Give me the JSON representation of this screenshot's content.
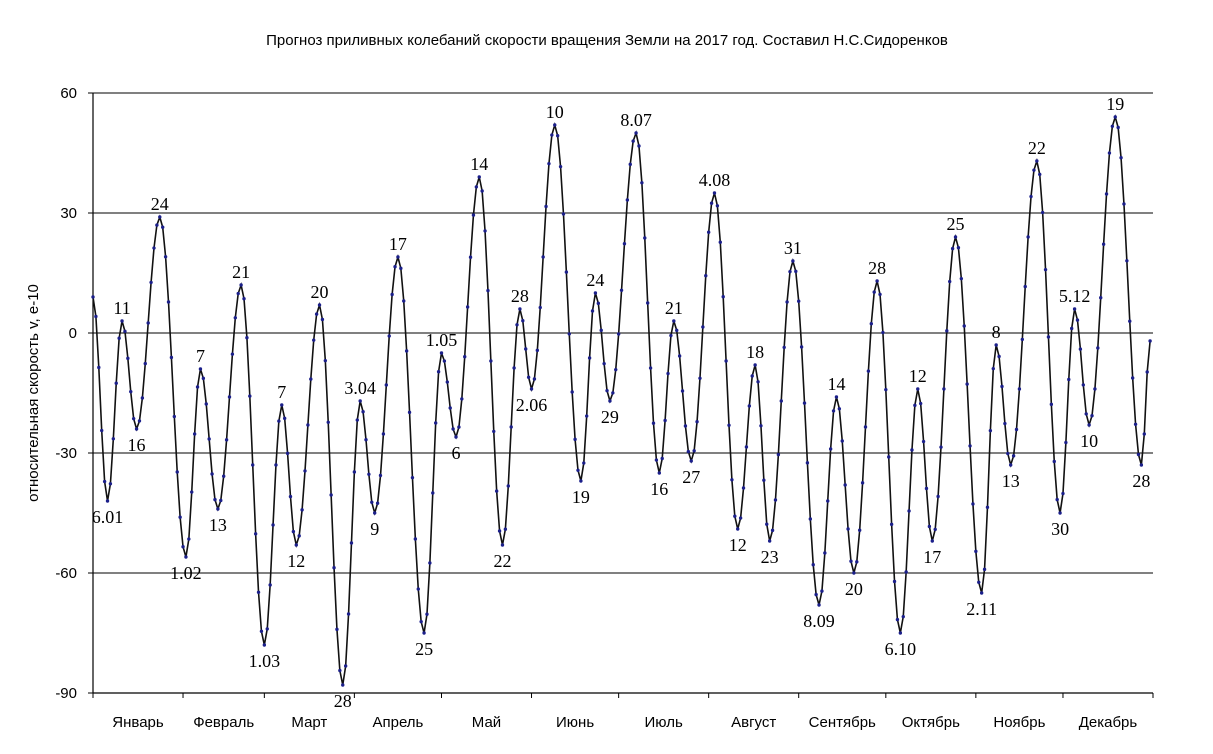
{
  "chart_data": {
    "type": "line",
    "title": "Прогноз приливных колебаний скорости вращения Земли на 2017 год. Составил Н.С.Сидоренков",
    "xlabel": "",
    "ylabel": "относительная скорость v, e-10",
    "ylim": [
      -90,
      60
    ],
    "yticks": [
      60,
      30,
      0,
      -30,
      -60,
      -90
    ],
    "ytick_labels": [
      "60",
      "30",
      "0",
      "-30",
      "-60",
      "-90"
    ],
    "xlim": [
      0,
      365
    ],
    "months": [
      {
        "label": "Январь",
        "start": 0
      },
      {
        "label": "Февраль",
        "start": 31
      },
      {
        "label": "Март",
        "start": 59
      },
      {
        "label": "Апрель",
        "start": 90
      },
      {
        "label": "Май",
        "start": 120
      },
      {
        "label": "Июнь",
        "start": 151
      },
      {
        "label": "Июль",
        "start": 181
      },
      {
        "label": "Август",
        "start": 212
      },
      {
        "label": "Сентябрь",
        "start": 243
      },
      {
        "label": "Октябрь",
        "start": 273
      },
      {
        "label": "Ноябрь",
        "start": 304
      },
      {
        "label": "Декабрь",
        "start": 334
      }
    ],
    "grid": true,
    "legend": "none",
    "series_color": "#111111",
    "marker_color": "#1b1f8a",
    "extrema": [
      {
        "day": 0,
        "value": 9,
        "label": ""
      },
      {
        "day": 5,
        "value": -42,
        "label": "6.01"
      },
      {
        "day": 10,
        "value": 3,
        "label": "11"
      },
      {
        "day": 15,
        "value": -24,
        "label": "16"
      },
      {
        "day": 23,
        "value": 29,
        "label": "24"
      },
      {
        "day": 32,
        "value": -56,
        "label": "1.02"
      },
      {
        "day": 37,
        "value": -9,
        "label": "7"
      },
      {
        "day": 43,
        "value": -44,
        "label": "13"
      },
      {
        "day": 51,
        "value": 12,
        "label": "21"
      },
      {
        "day": 59,
        "value": -78,
        "label": "1.03"
      },
      {
        "day": 65,
        "value": -18,
        "label": "7"
      },
      {
        "day": 70,
        "value": -53,
        "label": "12"
      },
      {
        "day": 78,
        "value": 7,
        "label": "20"
      },
      {
        "day": 86,
        "value": -88,
        "label": "28"
      },
      {
        "day": 92,
        "value": -17,
        "label": "3.04"
      },
      {
        "day": 97,
        "value": -45,
        "label": "9"
      },
      {
        "day": 105,
        "value": 19,
        "label": "17"
      },
      {
        "day": 114,
        "value": -75,
        "label": "25"
      },
      {
        "day": 120,
        "value": -5,
        "label": "1.05"
      },
      {
        "day": 125,
        "value": -26,
        "label": "6"
      },
      {
        "day": 133,
        "value": 39,
        "label": "14"
      },
      {
        "day": 141,
        "value": -53,
        "label": "22"
      },
      {
        "day": 147,
        "value": 6,
        "label": "28"
      },
      {
        "day": 151,
        "value": -14,
        "label": "2.06"
      },
      {
        "day": 159,
        "value": 52,
        "label": "10"
      },
      {
        "day": 168,
        "value": -37,
        "label": "19"
      },
      {
        "day": 173,
        "value": 10,
        "label": "24"
      },
      {
        "day": 178,
        "value": -17,
        "label": "29"
      },
      {
        "day": 187,
        "value": 50,
        "label": "8.07"
      },
      {
        "day": 195,
        "value": -35,
        "label": "16"
      },
      {
        "day": 200,
        "value": 3,
        "label": "21"
      },
      {
        "day": 206,
        "value": -32,
        "label": "27"
      },
      {
        "day": 214,
        "value": 35,
        "label": "4.08"
      },
      {
        "day": 222,
        "value": -49,
        "label": "12"
      },
      {
        "day": 228,
        "value": -8,
        "label": "18"
      },
      {
        "day": 233,
        "value": -52,
        "label": "23"
      },
      {
        "day": 241,
        "value": 18,
        "label": "31"
      },
      {
        "day": 250,
        "value": -68,
        "label": "8.09"
      },
      {
        "day": 256,
        "value": -16,
        "label": "14"
      },
      {
        "day": 262,
        "value": -60,
        "label": "20"
      },
      {
        "day": 270,
        "value": 13,
        "label": "28"
      },
      {
        "day": 278,
        "value": -75,
        "label": "6.10"
      },
      {
        "day": 284,
        "value": -14,
        "label": "12"
      },
      {
        "day": 289,
        "value": -52,
        "label": "17"
      },
      {
        "day": 297,
        "value": 24,
        "label": "25"
      },
      {
        "day": 306,
        "value": -65,
        "label": "2.11"
      },
      {
        "day": 311,
        "value": -3,
        "label": "8"
      },
      {
        "day": 316,
        "value": -33,
        "label": "13"
      },
      {
        "day": 325,
        "value": 43,
        "label": "22"
      },
      {
        "day": 333,
        "value": -45,
        "label": "30"
      },
      {
        "day": 338,
        "value": 6,
        "label": "5.12"
      },
      {
        "day": 343,
        "value": -23,
        "label": "10"
      },
      {
        "day": 352,
        "value": 54,
        "label": "19"
      },
      {
        "day": 361,
        "value": -33,
        "label": "28"
      },
      {
        "day": 364,
        "value": -2,
        "label": ""
      }
    ]
  }
}
